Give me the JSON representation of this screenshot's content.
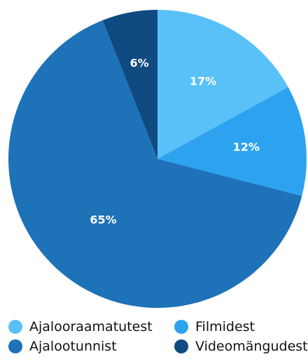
{
  "chart_data": {
    "type": "pie",
    "categories": [
      "Ajalooraamatutest",
      "Filmidest",
      "Ajalootunnist",
      "Videomängudest"
    ],
    "values": [
      17,
      12,
      65,
      6
    ],
    "labels": [
      "17%",
      "12%",
      "65%",
      "6%"
    ],
    "colors": [
      "#5ac0f8",
      "#2da3f0",
      "#1e72b8",
      "#0f4a80"
    ],
    "start_angle_deg": 0,
    "direction": "clockwise",
    "legend": {
      "position": "bottom",
      "items": [
        {
          "label": "Ajalooraamatutest",
          "color": "#5ac0f8"
        },
        {
          "label": "Filmidest",
          "color": "#2da3f0"
        },
        {
          "label": "Ajalootunnist",
          "color": "#1e72b8"
        },
        {
          "label": "Videomängudest",
          "color": "#0f4a80"
        }
      ]
    }
  }
}
